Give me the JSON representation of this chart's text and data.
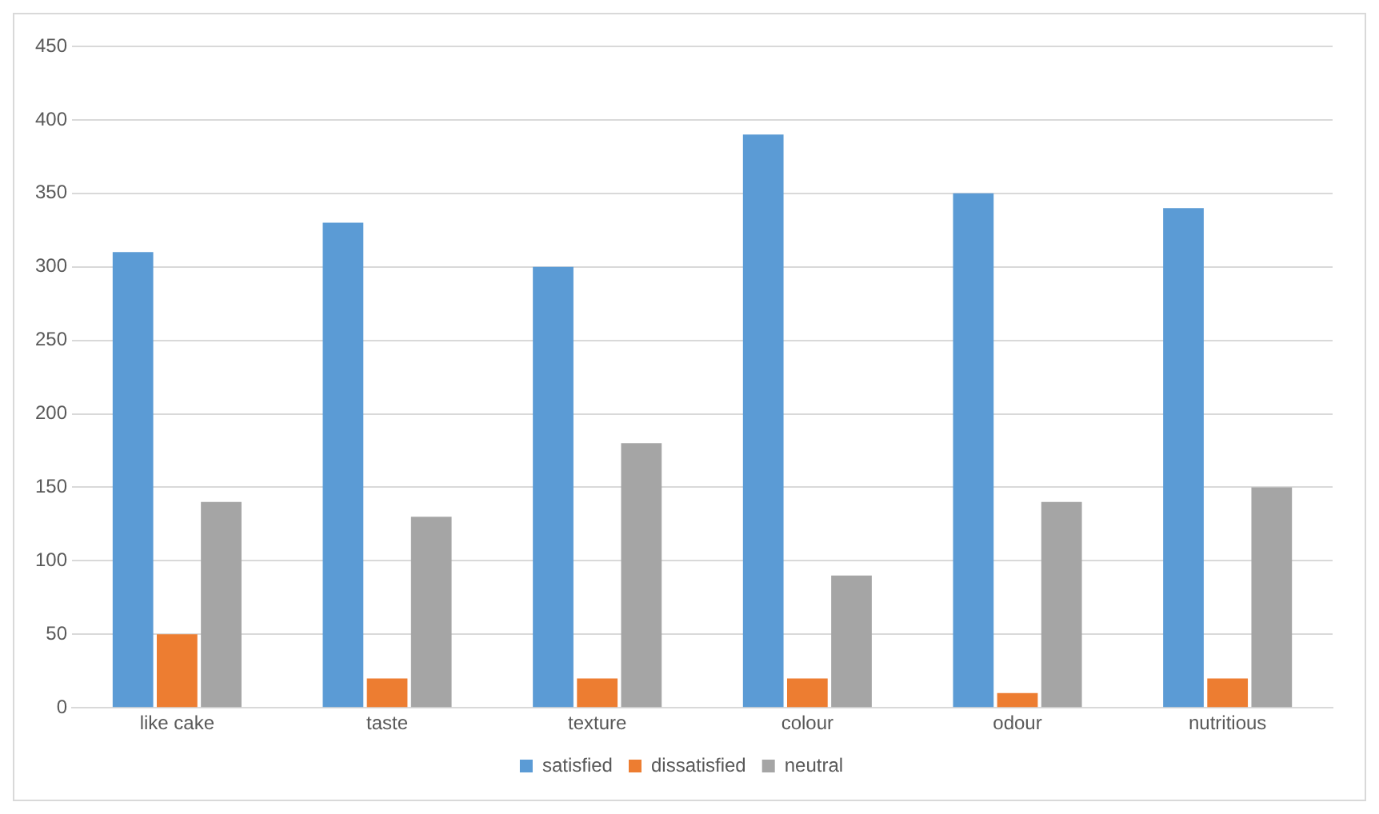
{
  "chart_data": {
    "type": "bar",
    "categories": [
      "like cake",
      "taste",
      "texture",
      "colour",
      "odour",
      "nutritious"
    ],
    "series": [
      {
        "name": "satisfied",
        "color": "#5b9bd5",
        "values": [
          310,
          330,
          300,
          390,
          350,
          340
        ]
      },
      {
        "name": "dissatisfied",
        "color": "#ed7d31",
        "values": [
          50,
          20,
          20,
          20,
          10,
          20
        ]
      },
      {
        "name": "neutral",
        "color": "#a5a5a5",
        "values": [
          140,
          130,
          180,
          90,
          140,
          150
        ]
      }
    ],
    "ylim": [
      0,
      450
    ],
    "yticks": [
      0,
      50,
      100,
      150,
      200,
      250,
      300,
      350,
      400,
      450
    ],
    "grid": "y",
    "legend": "bottom"
  }
}
